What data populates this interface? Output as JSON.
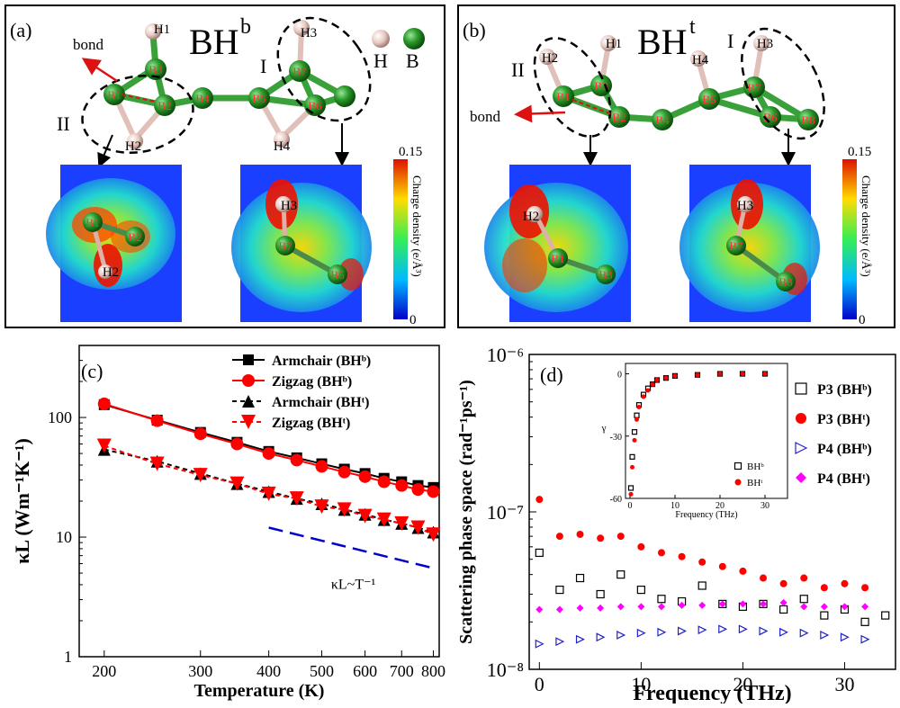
{
  "panel_a": {
    "letter": "(a)",
    "title_main": "BH",
    "title_sup": "b",
    "region_I": "I",
    "region_II": "II",
    "bond_label": "bond",
    "legend_H": "H",
    "legend_B": "B",
    "atoms": [
      "H1",
      "H3",
      "B3",
      "B1",
      "B2",
      "B4",
      "B5",
      "B7",
      "B6",
      "H2",
      "H4"
    ],
    "map_left_labels": [
      "B1",
      "B2",
      "H2"
    ],
    "map_right_labels": [
      "H3",
      "B7",
      "B6"
    ],
    "colorbar_max": "0.15",
    "colorbar_min": "0",
    "colorbar_label": "Charge density (e/Å³)"
  },
  "panel_b": {
    "letter": "(b)",
    "title_main": "BH",
    "title_sup": "t",
    "region_I": "I",
    "region_II": "II",
    "bond_label": "bond",
    "atoms": [
      "H2",
      "H1",
      "H4",
      "H3",
      "B1",
      "B3",
      "B2",
      "B4",
      "B5",
      "B7",
      "B6",
      "B8"
    ],
    "map_left_labels": [
      "H2",
      "B1",
      "B3"
    ],
    "map_right_labels": [
      "H3",
      "B7",
      "B8"
    ],
    "colorbar_max": "0.15",
    "colorbar_min": "0",
    "colorbar_label": "Charge density (e/Å³)"
  },
  "chart_data": [
    {
      "panel": "(c)",
      "type": "line",
      "xlabel": "Temperature (K)",
      "ylabel": "κL (Wm⁻¹K⁻¹)",
      "xscale": "log",
      "yscale": "log",
      "xlim": [
        180,
        820
      ],
      "ylim": [
        1,
        400
      ],
      "xticks": [
        200,
        300,
        400,
        500,
        600,
        700,
        800
      ],
      "yticks": [
        1,
        10,
        100
      ],
      "x": [
        200,
        250,
        300,
        350,
        400,
        450,
        500,
        550,
        600,
        650,
        700,
        750,
        800
      ],
      "series": [
        {
          "name": "Armchair (BHᵇ)",
          "marker": "square",
          "color": "#000000",
          "dash": "solid",
          "values": [
            128,
            95,
            75,
            62,
            52,
            46,
            41,
            37,
            34,
            31,
            29,
            27,
            26
          ]
        },
        {
          "name": "Zigzag (BHᵇ)",
          "marker": "circle",
          "color": "#ff0000",
          "dash": "solid",
          "values": [
            130,
            94,
            73,
            60,
            50,
            44,
            39,
            35,
            32,
            29,
            27,
            25,
            24
          ]
        },
        {
          "name": "Armchair (BHᵗ)",
          "marker": "triangle-up",
          "color": "#000000",
          "dash": "dashed",
          "values": [
            54,
            43,
            34,
            28,
            24,
            21,
            19,
            17,
            15.5,
            14,
            13,
            12,
            11
          ]
        },
        {
          "name": "Zigzag (BHᵗ)",
          "marker": "triangle-down",
          "color": "#ff0000",
          "dash": "dashed",
          "values": [
            58,
            41,
            33,
            28,
            23,
            21,
            18,
            17,
            15,
            14,
            13,
            12,
            10.5
          ]
        }
      ],
      "annotation": "κL~T⁻¹",
      "annotation_line": {
        "x": [
          400,
          800
        ],
        "y": [
          12,
          5.5
        ],
        "color": "#0000cc",
        "dash": "dashed"
      },
      "legend_position": "top-right"
    },
    {
      "panel": "(d)",
      "type": "scatter",
      "xlabel": "Frequency (THz)",
      "ylabel": "Scattering phase space (rad⁻¹ps⁻¹)",
      "yscale": "log",
      "xlim": [
        -1,
        35
      ],
      "ylim": [
        1e-08,
        1e-06
      ],
      "xticks": [
        0,
        10,
        20,
        30
      ],
      "ytick_labels": [
        "10⁻⁸",
        "10⁻⁷",
        "10⁻⁶"
      ],
      "series": [
        {
          "name": "P3 (BHᵇ)",
          "marker": "open-square",
          "color": "#000000",
          "x": [
            0,
            2,
            4,
            6,
            8,
            10,
            12,
            14,
            16,
            18,
            20,
            22,
            24,
            26,
            28,
            30,
            32,
            34
          ],
          "values": [
            5.5e-08,
            3.2e-08,
            3.8e-08,
            3e-08,
            4e-08,
            3.2e-08,
            2.8e-08,
            2.7e-08,
            3.4e-08,
            2.6e-08,
            2.5e-08,
            2.6e-08,
            2.4e-08,
            2.8e-08,
            2.2e-08,
            2.4e-08,
            2e-08,
            2.2e-08
          ]
        },
        {
          "name": "P3 (BHᵗ)",
          "marker": "filled-circle",
          "color": "#ff0000",
          "x": [
            0,
            2,
            4,
            6,
            8,
            10,
            12,
            14,
            16,
            18,
            20,
            22,
            24,
            26,
            28,
            30,
            32,
            34
          ],
          "values": [
            1.2e-07,
            7e-08,
            7.2e-08,
            6.8e-08,
            7e-08,
            6e-08,
            5.5e-08,
            5.2e-08,
            4.8e-08,
            4.5e-08,
            4.2e-08,
            3.8e-08,
            3.5e-08,
            3.8e-08,
            3.3e-08,
            3.5e-08,
            3.3e-08,
            null
          ]
        },
        {
          "name": "P4 (BHᵇ)",
          "marker": "open-triangle-right",
          "color": "#2222cc",
          "x": [
            0,
            2,
            4,
            6,
            8,
            10,
            12,
            14,
            16,
            18,
            20,
            22,
            24,
            26,
            28,
            30,
            32,
            34
          ],
          "values": [
            1.45e-08,
            1.5e-08,
            1.55e-08,
            1.6e-08,
            1.65e-08,
            1.7e-08,
            1.72e-08,
            1.75e-08,
            1.78e-08,
            1.8e-08,
            1.8e-08,
            1.75e-08,
            1.72e-08,
            1.7e-08,
            1.65e-08,
            1.6e-08,
            1.55e-08,
            null
          ]
        },
        {
          "name": "P4 (BHᵗ)",
          "marker": "filled-diamond",
          "color": "#ff00ff",
          "x": [
            0,
            2,
            4,
            6,
            8,
            10,
            12,
            14,
            16,
            18,
            20,
            22,
            24,
            26,
            28,
            30,
            32,
            34
          ],
          "values": [
            2.4e-08,
            2.4e-08,
            2.45e-08,
            2.45e-08,
            2.5e-08,
            2.5e-08,
            2.5e-08,
            2.55e-08,
            2.55e-08,
            2.6e-08,
            2.6e-08,
            2.6e-08,
            2.65e-08,
            2.5e-08,
            2.5e-08,
            2.5e-08,
            2.5e-08,
            null
          ]
        }
      ],
      "legend_position": "right",
      "inset": {
        "type": "scatter",
        "xlabel": "Frequency (THz)",
        "ylabel": "γ",
        "xlim": [
          -1,
          35
        ],
        "ylim": [
          -60,
          5
        ],
        "xticks": [
          0,
          10,
          20,
          30
        ],
        "yticks": [
          0,
          -30,
          -60
        ],
        "series": [
          {
            "name": "BHᵇ",
            "marker": "open-square",
            "color": "#000000",
            "x": [
              0.2,
              0.5,
              1,
              1.5,
              2,
              3,
              4,
              5,
              6,
              8,
              10,
              15,
              20,
              25,
              30
            ],
            "values": [
              -55,
              -40,
              -28,
              -20,
              -15,
              -10,
              -7,
              -5,
              -3,
              -2,
              -1,
              -0.5,
              0,
              0,
              0
            ]
          },
          {
            "name": "BHᵗ",
            "marker": "filled-circle",
            "color": "#ff0000",
            "x": [
              0.2,
              0.5,
              1,
              1.5,
              2,
              3,
              4,
              5,
              6,
              8,
              10,
              15,
              20,
              25,
              30
            ],
            "values": [
              -58,
              -45,
              -32,
              -22,
              -16,
              -11,
              -8,
              -5,
              -3,
              -2,
              -1,
              -0.5,
              0,
              0,
              0
            ]
          }
        ],
        "legend_position": "bottom-right"
      }
    }
  ]
}
